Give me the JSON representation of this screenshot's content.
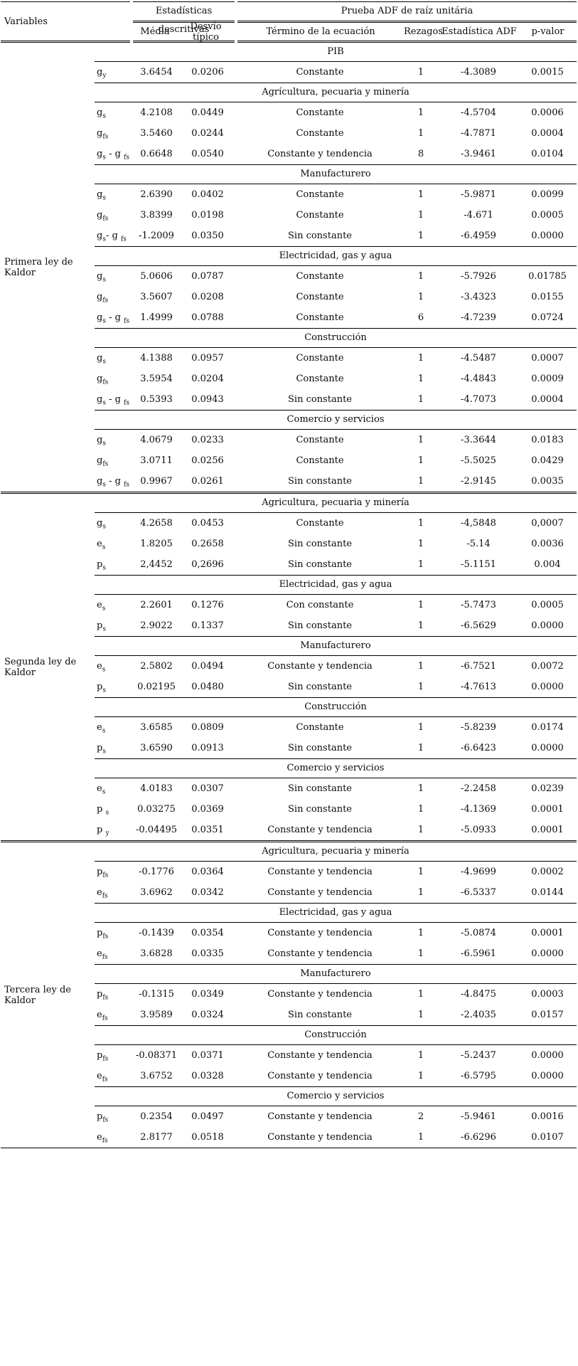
{
  "header": {
    "variables_label": "Variables",
    "stats_group_label": "Estadísticas descritivas",
    "adf_group_label": "Prueba ADF de raíz unitária",
    "col_media": "Média",
    "col_desvio": "Desvío típico",
    "col_termino": "Término de la ecuación",
    "col_rezagos": "Rezagos",
    "col_adf": "Estadística ADF",
    "col_pvalor": "p-valor"
  },
  "groups": [
    {
      "label": "Primera ley de Kaldor",
      "sections": [
        {
          "title": "PIB",
          "rows": [
            {
              "sym": [
                [
                  "g",
                  "y"
                ]
              ],
              "media": "3.6454",
              "desvio": "0.0206",
              "termino": "Constante",
              "rezagos": "1",
              "adf": "-4.3089",
              "pvalor": "0.0015"
            }
          ]
        },
        {
          "title": "Agrícultura, pecuaria y minería",
          "rows": [
            {
              "sym": [
                [
                  "g",
                  "s"
                ]
              ],
              "media": "4.2108",
              "desvio": "0.0449",
              "termino": "Constante",
              "rezagos": "1",
              "adf": "-4.5704",
              "pvalor": "0.0006"
            },
            {
              "sym": [
                [
                  "g",
                  "fs"
                ]
              ],
              "media": "3.5460",
              "desvio": "0.0244",
              "termino": "Constante",
              "rezagos": "1",
              "adf": "-4.7871",
              "pvalor": "0.0004"
            },
            {
              "sym": [
                [
                  "g",
                  "s"
                ],
                [
                  " - g ",
                  "fs"
                ]
              ],
              "media": "0.6648",
              "desvio": "0.0540",
              "termino": "Constante y tendencia",
              "rezagos": "8",
              "adf": "-3.9461",
              "pvalor": "0.0104"
            }
          ]
        },
        {
          "title": "Manufacturero",
          "rows": [
            {
              "sym": [
                [
                  "g",
                  "s"
                ]
              ],
              "media": "2.6390",
              "desvio": "0.0402",
              "termino": "Constante",
              "rezagos": "1",
              "adf": "-5.9871",
              "pvalor": "0.0099"
            },
            {
              "sym": [
                [
                  "g",
                  "fs"
                ]
              ],
              "media": "3.8399",
              "desvio": "0.0198",
              "termino": "Constante",
              "rezagos": "1",
              "adf": "-4.671",
              "pvalor": "0.0005"
            },
            {
              "sym": [
                [
                  "g",
                  "s"
                ],
                [
                  "- g ",
                  "fs"
                ]
              ],
              "media": "-1.2009",
              "desvio": "0.0350",
              "termino": "Sin constante",
              "rezagos": "1",
              "adf": "-6.4959",
              "pvalor": "0.0000"
            }
          ]
        },
        {
          "title": "Electricidad, gas y agua",
          "rows": [
            {
              "sym": [
                [
                  "g",
                  "s"
                ]
              ],
              "media": "5.0606",
              "desvio": "0.0787",
              "termino": "Constante",
              "rezagos": "1",
              "adf": "-5.7926",
              "pvalor": "0.01785"
            },
            {
              "sym": [
                [
                  "g",
                  "fs"
                ]
              ],
              "media": "3.5607",
              "desvio": "0.0208",
              "termino": "Constante",
              "rezagos": "1",
              "adf": "-3.4323",
              "pvalor": "0.0155"
            },
            {
              "sym": [
                [
                  "g",
                  "s"
                ],
                [
                  " - g ",
                  "fs"
                ]
              ],
              "media": "1.4999",
              "desvio": "0.0788",
              "termino": "Constante",
              "rezagos": "6",
              "adf": "-4.7239",
              "pvalor": "0.0724"
            }
          ]
        },
        {
          "title": "Construcción",
          "rows": [
            {
              "sym": [
                [
                  "g",
                  "s"
                ]
              ],
              "media": "4.1388",
              "desvio": "0.0957",
              "termino": "Constante",
              "rezagos": "1",
              "adf": "-4.5487",
              "pvalor": "0.0007"
            },
            {
              "sym": [
                [
                  "g",
                  "fs"
                ]
              ],
              "media": "3.5954",
              "desvio": "0.0204",
              "termino": "Constante",
              "rezagos": "1",
              "adf": "-4.4843",
              "pvalor": "0.0009"
            },
            {
              "sym": [
                [
                  "g",
                  "s"
                ],
                [
                  " - g ",
                  "fs"
                ]
              ],
              "media": "0.5393",
              "desvio": "0.0943",
              "termino": "Sin constante",
              "rezagos": "1",
              "adf": "-4.7073",
              "pvalor": "0.0004"
            }
          ]
        },
        {
          "title": "Comercio y servicios",
          "rows": [
            {
              "sym": [
                [
                  "g",
                  "s"
                ]
              ],
              "media": "4.0679",
              "desvio": "0.0233",
              "termino": "Constante",
              "rezagos": "1",
              "adf": "-3.3644",
              "pvalor": "0.0183"
            },
            {
              "sym": [
                [
                  "g",
                  "fs"
                ]
              ],
              "media": "3.0711",
              "desvio": "0.0256",
              "termino": "Constante",
              "rezagos": "1",
              "adf": "-5.5025",
              "pvalor": "0.0429"
            },
            {
              "sym": [
                [
                  "g",
                  "s"
                ],
                [
                  " - g ",
                  "fs"
                ]
              ],
              "media": "0.9967",
              "desvio": "0.0261",
              "termino": "Sin constante",
              "rezagos": "1",
              "adf": "-2.9145",
              "pvalor": "0.0035"
            }
          ]
        }
      ]
    },
    {
      "label": "Segunda ley de Kaldor",
      "sections": [
        {
          "title": "Agricultura, pecuaria y minería",
          "rows": [
            {
              "sym": [
                [
                  "g",
                  "s"
                ]
              ],
              "media": "4.2658",
              "desvio": "0.0453",
              "termino": "Constante",
              "rezagos": "1",
              "adf": "-4,5848",
              "pvalor": "0,0007"
            },
            {
              "sym": [
                [
                  "e",
                  "s"
                ]
              ],
              "media": "1.8205",
              "desvio": "0.2658",
              "termino": "Sin constante",
              "rezagos": "1",
              "adf": "-5.14",
              "pvalor": "0.0036"
            },
            {
              "sym": [
                [
                  "p",
                  "s"
                ]
              ],
              "media": "2,4452",
              "desvio": "0,2696",
              "termino": "Sin constante",
              "rezagos": "1",
              "adf": "-5.1151",
              "pvalor": "0.004"
            }
          ]
        },
        {
          "title": "Electricidad, gas y agua",
          "rows": [
            {
              "sym": [
                [
                  "e",
                  "s"
                ]
              ],
              "media": "2.2601",
              "desvio": "0.1276",
              "termino": "Con constante",
              "rezagos": "1",
              "adf": "-5.7473",
              "pvalor": "0.0005"
            },
            {
              "sym": [
                [
                  "p",
                  "s"
                ]
              ],
              "media": "2.9022",
              "desvio": "0.1337",
              "termino": "Sin constante",
              "rezagos": "1",
              "adf": "-6.5629",
              "pvalor": "0.0000"
            }
          ]
        },
        {
          "title": "Manufacturero",
          "rows": [
            {
              "sym": [
                [
                  "e",
                  "s"
                ]
              ],
              "media": "2.5802",
              "desvio": "0.0494",
              "termino": "Constante y tendencia",
              "rezagos": "1",
              "adf": "-6.7521",
              "pvalor": "0.0072"
            },
            {
              "sym": [
                [
                  "p",
                  "s"
                ]
              ],
              "media": "0.02195",
              "desvio": "0.0480",
              "termino": "Sin constante",
              "rezagos": "1",
              "adf": "-4.7613",
              "pvalor": "0.0000"
            }
          ]
        },
        {
          "title": "Construcción",
          "rows": [
            {
              "sym": [
                [
                  "e",
                  "s"
                ]
              ],
              "media": "3.6585",
              "desvio": "0.0809",
              "termino": "Constante",
              "rezagos": "1",
              "adf": "-5.8239",
              "pvalor": "0.0174"
            },
            {
              "sym": [
                [
                  "p",
                  "s"
                ]
              ],
              "media": "3.6590",
              "desvio": "0.0913",
              "termino": "Sin constante",
              "rezagos": "1",
              "adf": "-6.6423",
              "pvalor": "0.0000"
            }
          ]
        },
        {
          "title": "Comercio y servicios",
          "rows": [
            {
              "sym": [
                [
                  "e",
                  "s"
                ]
              ],
              "media": "4.0183",
              "desvio": "0.0307",
              "termino": "Sin constante",
              "rezagos": "1",
              "adf": "-2.2458",
              "pvalor": "0.0239"
            },
            {
              "sym": [
                [
                  "p ",
                  "s"
                ]
              ],
              "media": "0.03275",
              "desvio": "0.0369",
              "termino": "Sin constante",
              "rezagos": "1",
              "adf": "-4.1369",
              "pvalor": "0.0001"
            },
            {
              "sym": [
                [
                  "p ",
                  "y"
                ]
              ],
              "media": "-0.04495",
              "desvio": "0.0351",
              "termino": "Constante y tendencia",
              "rezagos": "1",
              "adf": "-5.0933",
              "pvalor": "0.0001"
            }
          ]
        }
      ]
    },
    {
      "label": "Tercera ley de Kaldor",
      "sections": [
        {
          "title": "Agricultura, pecuaria y minería",
          "rows": [
            {
              "sym": [
                [
                  "p",
                  "fs"
                ]
              ],
              "media": "-0.1776",
              "desvio": "0.0364",
              "termino": "Constante y tendencia",
              "rezagos": "1",
              "adf": "-4.9699",
              "pvalor": "0.0002"
            },
            {
              "sym": [
                [
                  "e",
                  "fs"
                ]
              ],
              "media": "3.6962",
              "desvio": "0.0342",
              "termino": "Constante y tendencia",
              "rezagos": "1",
              "adf": "-6.5337",
              "pvalor": "0.0144"
            }
          ]
        },
        {
          "title": "Electricidad, gas y agua",
          "rows": [
            {
              "sym": [
                [
                  "p",
                  "fs"
                ]
              ],
              "media": "-0.1439",
              "desvio": "0.0354",
              "termino": "Constante y tendencia",
              "rezagos": "1",
              "adf": "-5.0874",
              "pvalor": "0.0001"
            },
            {
              "sym": [
                [
                  "e",
                  "fs"
                ]
              ],
              "media": "3.6828",
              "desvio": "0.0335",
              "termino": "Constante y tendencia",
              "rezagos": "1",
              "adf": "-6.5961",
              "pvalor": "0.0000"
            }
          ]
        },
        {
          "title": "Manufacturero",
          "rows": [
            {
              "sym": [
                [
                  "p",
                  "fs"
                ]
              ],
              "media": "-0.1315",
              "desvio": "0.0349",
              "termino": "Constante y tendencia",
              "rezagos": "1",
              "adf": "-4.8475",
              "pvalor": "0.0003"
            },
            {
              "sym": [
                [
                  "e",
                  "fs"
                ]
              ],
              "media": "3.9589",
              "desvio": "0.0324",
              "termino": "Sin constante",
              "rezagos": "1",
              "adf": "-2.4035",
              "pvalor": "0.0157"
            }
          ]
        },
        {
          "title": "Construcción",
          "rows": [
            {
              "sym": [
                [
                  "p",
                  "fs"
                ]
              ],
              "media": "-0.08371",
              "desvio": "0.0371",
              "termino": "Constante y tendencia",
              "rezagos": "1",
              "adf": "-5.2437",
              "pvalor": "0.0000"
            },
            {
              "sym": [
                [
                  "e",
                  "fs"
                ]
              ],
              "media": "3.6752",
              "desvio": "0.0328",
              "termino": "Constante y tendencia",
              "rezagos": "1",
              "adf": "-6.5795",
              "pvalor": "0.0000"
            }
          ]
        },
        {
          "title": "Comercio y servicios",
          "rows": [
            {
              "sym": [
                [
                  "p",
                  "fs"
                ]
              ],
              "media": "0.2354",
              "desvio": "0.0497",
              "termino": "Constante y tendencia",
              "rezagos": "2",
              "adf": "-5.9461",
              "pvalor": "0.0016"
            },
            {
              "sym": [
                [
                  "e",
                  "fs"
                ]
              ],
              "media": "2.8177",
              "desvio": "0.0518",
              "termino": "Constante y tendencia",
              "rezagos": "1",
              "adf": "-6.6296",
              "pvalor": "0.0107"
            }
          ]
        }
      ]
    }
  ]
}
